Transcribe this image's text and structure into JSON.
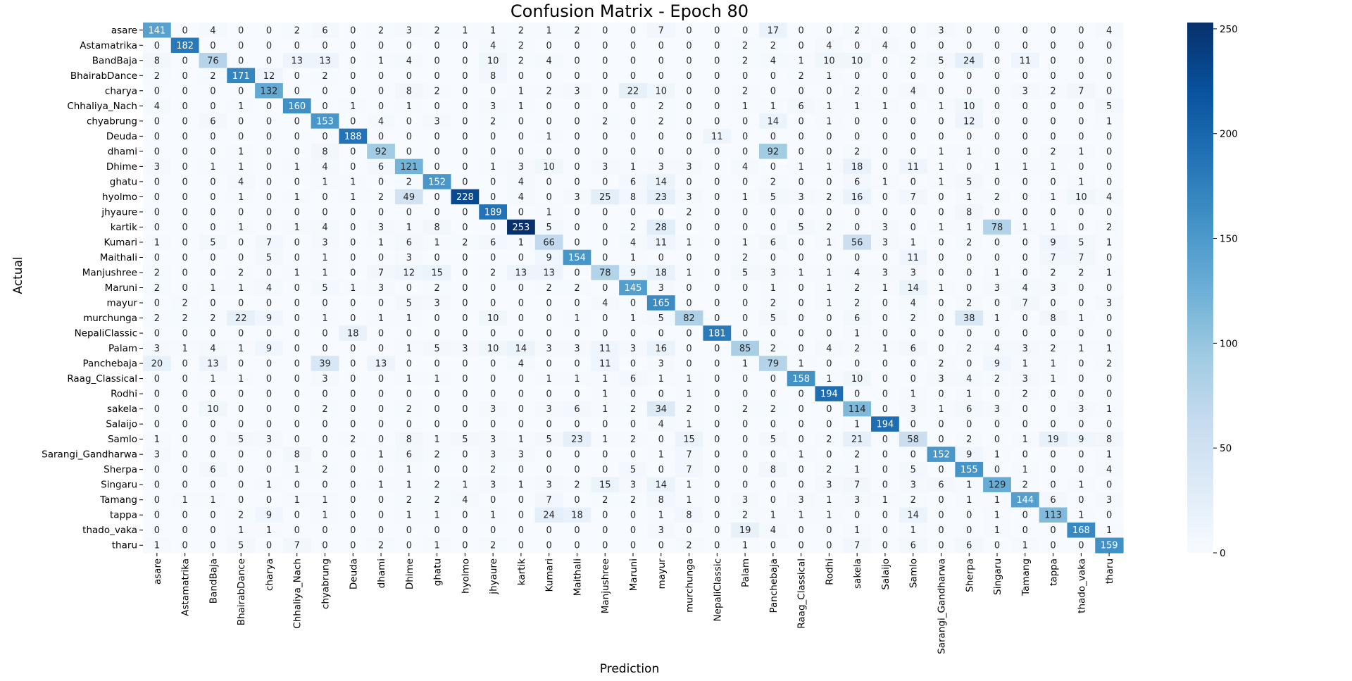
{
  "chart_data": {
    "type": "heatmap",
    "title": "Confusion Matrix - Epoch 80",
    "xlabel": "Prediction",
    "ylabel": "Actual",
    "labels": [
      "asare",
      "Astamatrika",
      "BandBaja",
      "BhairabDance",
      "charya",
      "Chhaliya_Nach",
      "chyabrung",
      "Deuda",
      "dhami",
      "Dhime",
      "ghatu",
      "hyolmo",
      "jhyaure",
      "kartik",
      "Kumari",
      "Maithali",
      "Manjushree",
      "Maruni",
      "mayur",
      "murchunga",
      "NepaliClassic",
      "Palam",
      "Panchebaja",
      "Raag_Classical",
      "Rodhi",
      "sakela",
      "Salaijo",
      "Samlo",
      "Sarangi_Gandharwa",
      "Sherpa",
      "Singaru",
      "Tamang",
      "tappa",
      "thado_vaka",
      "tharu"
    ],
    "matrix": [
      [
        141,
        0,
        4,
        0,
        0,
        2,
        6,
        0,
        2,
        3,
        2,
        1,
        1,
        2,
        1,
        2,
        0,
        0,
        7,
        0,
        0,
        0,
        17,
        0,
        0,
        2,
        0,
        0,
        3,
        0,
        0,
        0,
        0,
        0,
        4
      ],
      [
        0,
        182,
        0,
        0,
        0,
        0,
        0,
        0,
        0,
        0,
        0,
        0,
        4,
        2,
        0,
        0,
        0,
        0,
        0,
        0,
        0,
        2,
        2,
        0,
        4,
        0,
        4,
        0,
        0,
        0,
        0,
        0,
        0,
        0,
        0
      ],
      [
        8,
        0,
        76,
        0,
        0,
        13,
        13,
        0,
        1,
        4,
        0,
        0,
        10,
        2,
        4,
        0,
        0,
        0,
        0,
        0,
        0,
        2,
        4,
        1,
        10,
        10,
        0,
        2,
        5,
        24,
        0,
        11,
        0,
        0,
        0
      ],
      [
        2,
        0,
        2,
        171,
        12,
        0,
        2,
        0,
        0,
        0,
        0,
        0,
        8,
        0,
        0,
        0,
        0,
        0,
        0,
        0,
        0,
        0,
        0,
        2,
        1,
        0,
        0,
        0,
        0,
        0,
        0,
        0,
        0,
        0,
        0
      ],
      [
        0,
        0,
        0,
        0,
        132,
        0,
        0,
        0,
        0,
        8,
        2,
        0,
        0,
        1,
        2,
        3,
        0,
        22,
        10,
        0,
        0,
        2,
        0,
        0,
        0,
        2,
        0,
        4,
        0,
        0,
        0,
        3,
        2,
        7,
        0
      ],
      [
        4,
        0,
        0,
        1,
        0,
        160,
        0,
        1,
        0,
        1,
        0,
        0,
        3,
        1,
        0,
        0,
        0,
        0,
        2,
        0,
        0,
        1,
        1,
        6,
        1,
        1,
        1,
        0,
        1,
        10,
        0,
        0,
        0,
        0,
        5
      ],
      [
        0,
        0,
        6,
        0,
        0,
        0,
        153,
        0,
        4,
        0,
        3,
        0,
        2,
        0,
        0,
        0,
        2,
        0,
        2,
        0,
        0,
        0,
        14,
        0,
        1,
        0,
        0,
        0,
        0,
        12,
        0,
        0,
        0,
        0,
        1
      ],
      [
        0,
        0,
        0,
        0,
        0,
        0,
        0,
        188,
        0,
        0,
        0,
        0,
        0,
        0,
        1,
        0,
        0,
        0,
        0,
        0,
        11,
        0,
        0,
        0,
        0,
        0,
        0,
        0,
        0,
        0,
        0,
        0,
        0,
        0,
        0
      ],
      [
        0,
        0,
        0,
        1,
        0,
        0,
        8,
        0,
        92,
        0,
        0,
        0,
        0,
        0,
        0,
        0,
        0,
        0,
        0,
        0,
        0,
        0,
        92,
        0,
        0,
        2,
        0,
        0,
        1,
        1,
        0,
        0,
        2,
        1,
        0
      ],
      [
        3,
        0,
        1,
        1,
        0,
        1,
        4,
        0,
        6,
        121,
        0,
        0,
        1,
        3,
        10,
        0,
        3,
        1,
        3,
        3,
        0,
        4,
        0,
        1,
        1,
        18,
        0,
        11,
        1,
        0,
        1,
        1,
        1,
        0,
        0
      ],
      [
        0,
        0,
        0,
        4,
        0,
        0,
        1,
        1,
        0,
        2,
        152,
        0,
        0,
        4,
        0,
        0,
        0,
        6,
        14,
        0,
        0,
        0,
        2,
        0,
        0,
        6,
        1,
        0,
        1,
        5,
        0,
        0,
        0,
        1,
        0
      ],
      [
        0,
        0,
        0,
        1,
        0,
        1,
        0,
        1,
        2,
        49,
        0,
        228,
        0,
        4,
        0,
        3,
        25,
        8,
        23,
        3,
        0,
        1,
        5,
        3,
        2,
        16,
        0,
        7,
        0,
        1,
        2,
        0,
        1,
        10,
        4
      ],
      [
        0,
        0,
        0,
        0,
        0,
        0,
        0,
        0,
        0,
        0,
        0,
        0,
        189,
        0,
        1,
        0,
        0,
        0,
        0,
        2,
        0,
        0,
        0,
        0,
        0,
        0,
        0,
        0,
        0,
        8,
        0,
        0,
        0,
        0,
        0
      ],
      [
        0,
        0,
        0,
        1,
        0,
        1,
        4,
        0,
        3,
        1,
        8,
        0,
        0,
        253,
        5,
        0,
        0,
        2,
        28,
        0,
        0,
        0,
        0,
        5,
        2,
        0,
        3,
        0,
        1,
        1,
        78,
        1,
        1,
        0,
        2
      ],
      [
        1,
        0,
        5,
        0,
        7,
        0,
        3,
        0,
        1,
        6,
        1,
        2,
        6,
        1,
        66,
        0,
        0,
        4,
        11,
        1,
        0,
        1,
        6,
        0,
        1,
        56,
        3,
        1,
        0,
        2,
        0,
        0,
        9,
        5,
        1
      ],
      [
        0,
        0,
        0,
        0,
        5,
        0,
        1,
        0,
        0,
        3,
        0,
        0,
        0,
        0,
        9,
        154,
        0,
        1,
        0,
        0,
        0,
        2,
        0,
        0,
        0,
        0,
        0,
        11,
        0,
        0,
        0,
        0,
        7,
        7,
        0
      ],
      [
        2,
        0,
        0,
        2,
        0,
        1,
        1,
        0,
        7,
        12,
        15,
        0,
        2,
        13,
        13,
        0,
        78,
        9,
        18,
        1,
        0,
        5,
        3,
        1,
        1,
        4,
        3,
        3,
        0,
        0,
        1,
        0,
        2,
        2,
        1
      ],
      [
        2,
        0,
        1,
        1,
        4,
        0,
        5,
        1,
        3,
        0,
        2,
        0,
        0,
        0,
        2,
        2,
        0,
        145,
        3,
        0,
        0,
        0,
        1,
        0,
        1,
        2,
        1,
        14,
        1,
        0,
        3,
        4,
        3,
        0,
        0
      ],
      [
        0,
        2,
        0,
        0,
        0,
        0,
        0,
        0,
        0,
        5,
        3,
        0,
        0,
        0,
        0,
        0,
        4,
        0,
        165,
        0,
        0,
        0,
        2,
        0,
        1,
        2,
        0,
        4,
        0,
        2,
        0,
        7,
        0,
        0,
        3
      ],
      [
        2,
        2,
        2,
        22,
        9,
        0,
        1,
        0,
        1,
        1,
        0,
        0,
        10,
        0,
        0,
        1,
        0,
        1,
        5,
        82,
        0,
        0,
        5,
        0,
        0,
        6,
        0,
        2,
        0,
        38,
        1,
        0,
        8,
        1,
        0
      ],
      [
        0,
        0,
        0,
        0,
        0,
        0,
        0,
        18,
        0,
        0,
        0,
        0,
        0,
        0,
        0,
        0,
        0,
        0,
        0,
        0,
        181,
        0,
        0,
        0,
        0,
        1,
        0,
        0,
        0,
        0,
        0,
        0,
        0,
        0,
        0
      ],
      [
        3,
        1,
        4,
        1,
        9,
        0,
        0,
        0,
        0,
        1,
        5,
        3,
        10,
        14,
        3,
        3,
        11,
        3,
        16,
        0,
        0,
        85,
        2,
        0,
        4,
        2,
        1,
        6,
        0,
        2,
        4,
        3,
        2,
        1,
        1
      ],
      [
        20,
        0,
        13,
        0,
        0,
        0,
        39,
        0,
        13,
        0,
        0,
        0,
        0,
        4,
        0,
        0,
        11,
        0,
        3,
        0,
        0,
        1,
        79,
        1,
        0,
        0,
        0,
        0,
        2,
        0,
        9,
        1,
        1,
        0,
        2
      ],
      [
        0,
        0,
        1,
        1,
        0,
        0,
        3,
        0,
        0,
        1,
        1,
        0,
        0,
        0,
        1,
        1,
        1,
        6,
        1,
        1,
        0,
        0,
        0,
        158,
        1,
        10,
        0,
        0,
        3,
        4,
        2,
        3,
        1,
        0,
        0
      ],
      [
        0,
        0,
        0,
        0,
        0,
        0,
        0,
        0,
        0,
        0,
        0,
        0,
        0,
        0,
        0,
        0,
        1,
        0,
        0,
        1,
        0,
        0,
        0,
        0,
        194,
        0,
        0,
        1,
        0,
        1,
        0,
        2,
        0,
        0,
        0
      ],
      [
        0,
        0,
        10,
        0,
        0,
        0,
        2,
        0,
        0,
        2,
        0,
        0,
        3,
        0,
        3,
        6,
        1,
        2,
        34,
        2,
        0,
        2,
        2,
        0,
        0,
        114,
        0,
        3,
        1,
        6,
        3,
        0,
        0,
        3,
        1
      ],
      [
        0,
        0,
        0,
        0,
        0,
        0,
        0,
        0,
        0,
        0,
        0,
        0,
        0,
        0,
        0,
        0,
        0,
        0,
        4,
        1,
        0,
        0,
        0,
        0,
        0,
        1,
        194,
        0,
        0,
        0,
        0,
        0,
        0,
        0,
        0
      ],
      [
        1,
        0,
        0,
        5,
        3,
        0,
        0,
        2,
        0,
        8,
        1,
        5,
        3,
        1,
        5,
        23,
        1,
        2,
        0,
        15,
        0,
        0,
        5,
        0,
        2,
        21,
        0,
        58,
        0,
        2,
        0,
        1,
        19,
        9,
        8
      ],
      [
        3,
        0,
        0,
        0,
        0,
        8,
        0,
        0,
        1,
        6,
        2,
        0,
        3,
        3,
        0,
        0,
        0,
        0,
        1,
        7,
        0,
        0,
        0,
        1,
        0,
        2,
        0,
        0,
        152,
        9,
        1,
        0,
        0,
        0,
        1
      ],
      [
        0,
        0,
        6,
        0,
        0,
        1,
        2,
        0,
        0,
        1,
        0,
        0,
        2,
        0,
        0,
        0,
        0,
        5,
        0,
        7,
        0,
        0,
        8,
        0,
        2,
        1,
        0,
        5,
        0,
        155,
        0,
        1,
        0,
        0,
        4
      ],
      [
        0,
        0,
        0,
        0,
        1,
        0,
        0,
        0,
        1,
        1,
        2,
        1,
        3,
        1,
        3,
        2,
        15,
        3,
        14,
        1,
        0,
        0,
        0,
        0,
        3,
        7,
        0,
        3,
        6,
        1,
        129,
        2,
        0,
        1,
        0
      ],
      [
        0,
        1,
        1,
        0,
        0,
        1,
        1,
        0,
        0,
        2,
        2,
        4,
        0,
        0,
        7,
        0,
        2,
        2,
        8,
        1,
        0,
        3,
        0,
        3,
        1,
        3,
        1,
        2,
        0,
        1,
        1,
        144,
        6,
        0,
        3
      ],
      [
        0,
        0,
        0,
        2,
        9,
        0,
        1,
        0,
        0,
        1,
        1,
        0,
        1,
        0,
        24,
        18,
        0,
        0,
        1,
        8,
        0,
        2,
        1,
        1,
        1,
        0,
        0,
        14,
        0,
        0,
        1,
        0,
        113,
        1,
        0
      ],
      [
        0,
        0,
        0,
        1,
        1,
        0,
        0,
        0,
        0,
        0,
        0,
        0,
        0,
        0,
        0,
        0,
        0,
        0,
        3,
        0,
        0,
        19,
        4,
        0,
        0,
        1,
        0,
        1,
        0,
        0,
        1,
        0,
        0,
        168,
        1
      ],
      [
        1,
        0,
        0,
        5,
        0,
        7,
        0,
        0,
        2,
        0,
        1,
        0,
        2,
        0,
        0,
        0,
        0,
        0,
        0,
        2,
        0,
        1,
        0,
        0,
        0,
        7,
        0,
        6,
        0,
        6,
        0,
        1,
        0,
        0,
        159
      ]
    ],
    "colorbar": {
      "ticks": [
        0,
        50,
        100,
        150,
        200,
        250
      ],
      "range": [
        0,
        253
      ],
      "colors": [
        "#f7fbff",
        "#deebf7",
        "#c6dbef",
        "#9ecae1",
        "#6baed6",
        "#4292c6",
        "#2171b5",
        "#08519c",
        "#08306b"
      ]
    },
    "grid": false
  }
}
